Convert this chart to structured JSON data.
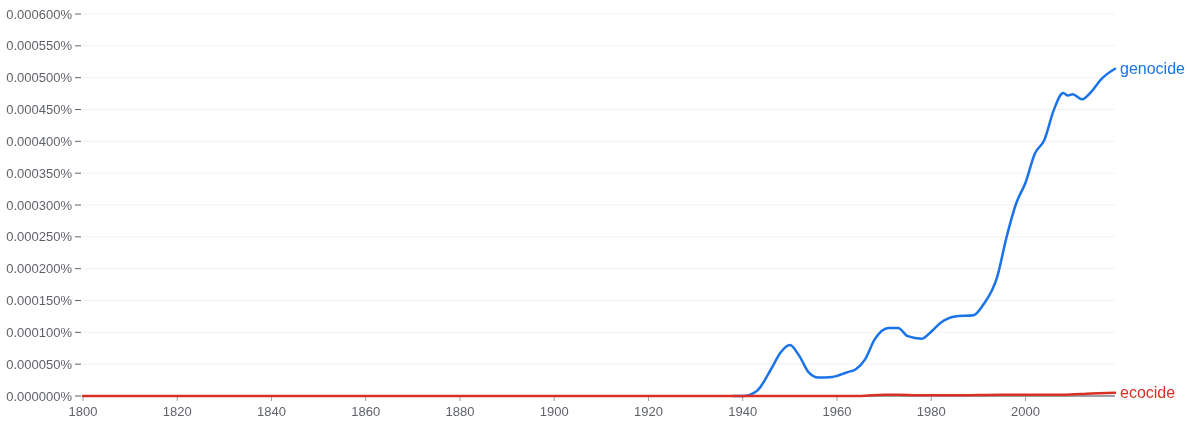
{
  "chart_data": {
    "type": "line",
    "xlim": [
      1800,
      2019
    ],
    "xticks": [
      1800,
      1820,
      1840,
      1860,
      1880,
      1900,
      1920,
      1940,
      1960,
      1980,
      2000
    ],
    "ylim": [
      0,
      0.0006
    ],
    "yticks": [
      {
        "value": 0,
        "label": "0.000000%"
      },
      {
        "value": 5e-05,
        "label": "0.000050%"
      },
      {
        "value": 0.0001,
        "label": "0.000100%"
      },
      {
        "value": 0.00015,
        "label": "0.000150%"
      },
      {
        "value": 0.0002,
        "label": "0.000200%"
      },
      {
        "value": 0.00025,
        "label": "0.000250%"
      },
      {
        "value": 0.0003,
        "label": "0.000300%"
      },
      {
        "value": 0.00035,
        "label": "0.000350%"
      },
      {
        "value": 0.0004,
        "label": "0.000400%"
      },
      {
        "value": 0.00045,
        "label": "0.000450%"
      },
      {
        "value": 0.0005,
        "label": "0.000500%"
      },
      {
        "value": 0.00055,
        "label": "0.000550%"
      },
      {
        "value": 0.0006,
        "label": "0.000600%"
      }
    ],
    "grid": "y",
    "legend": false,
    "marker": "none",
    "line_style": "solid",
    "series": [
      {
        "name": "genocide",
        "color": "#1a73e8",
        "x": [
          1938,
          1940,
          1943,
          1946,
          1948,
          1950,
          1952,
          1954,
          1956,
          1959,
          1962,
          1964,
          1966,
          1968,
          1971,
          1973,
          1975,
          1978,
          1980,
          1982,
          1985,
          1989,
          1991,
          1994,
          1996,
          1998,
          2000,
          2002,
          2004,
          2006,
          2008,
          2009,
          2010,
          2012,
          2014,
          2016,
          2019
        ],
        "values": [
          0,
          0,
          8e-06,
          4.2e-05,
          6.8e-05,
          8e-05,
          6.3e-05,
          3.7e-05,
          2.9e-05,
          3e-05,
          3.7e-05,
          4.2e-05,
          5.8e-05,
          8.9e-05,
          0.000107,
          0.000107,
          9.4e-05,
          9e-05,
          0.000101,
          0.000115,
          0.000125,
          0.000127,
          0.000143,
          0.000187,
          0.00025,
          0.000302,
          0.000335,
          0.000381,
          0.000402,
          0.000449,
          0.000476,
          0.000472,
          0.000474,
          0.000466,
          0.000478,
          0.000497,
          0.000514
        ]
      },
      {
        "name": "ecocide",
        "color": "#d93025",
        "x": [
          1800,
          1900,
          1965,
          1970,
          1973,
          1977,
          1985,
          1995,
          2000,
          2008,
          2014,
          2019
        ],
        "values": [
          0,
          0,
          0,
          2e-06,
          2e-06,
          1e-06,
          1e-06,
          2e-06,
          2e-06,
          2e-06,
          4e-06,
          5e-06
        ]
      }
    ]
  }
}
